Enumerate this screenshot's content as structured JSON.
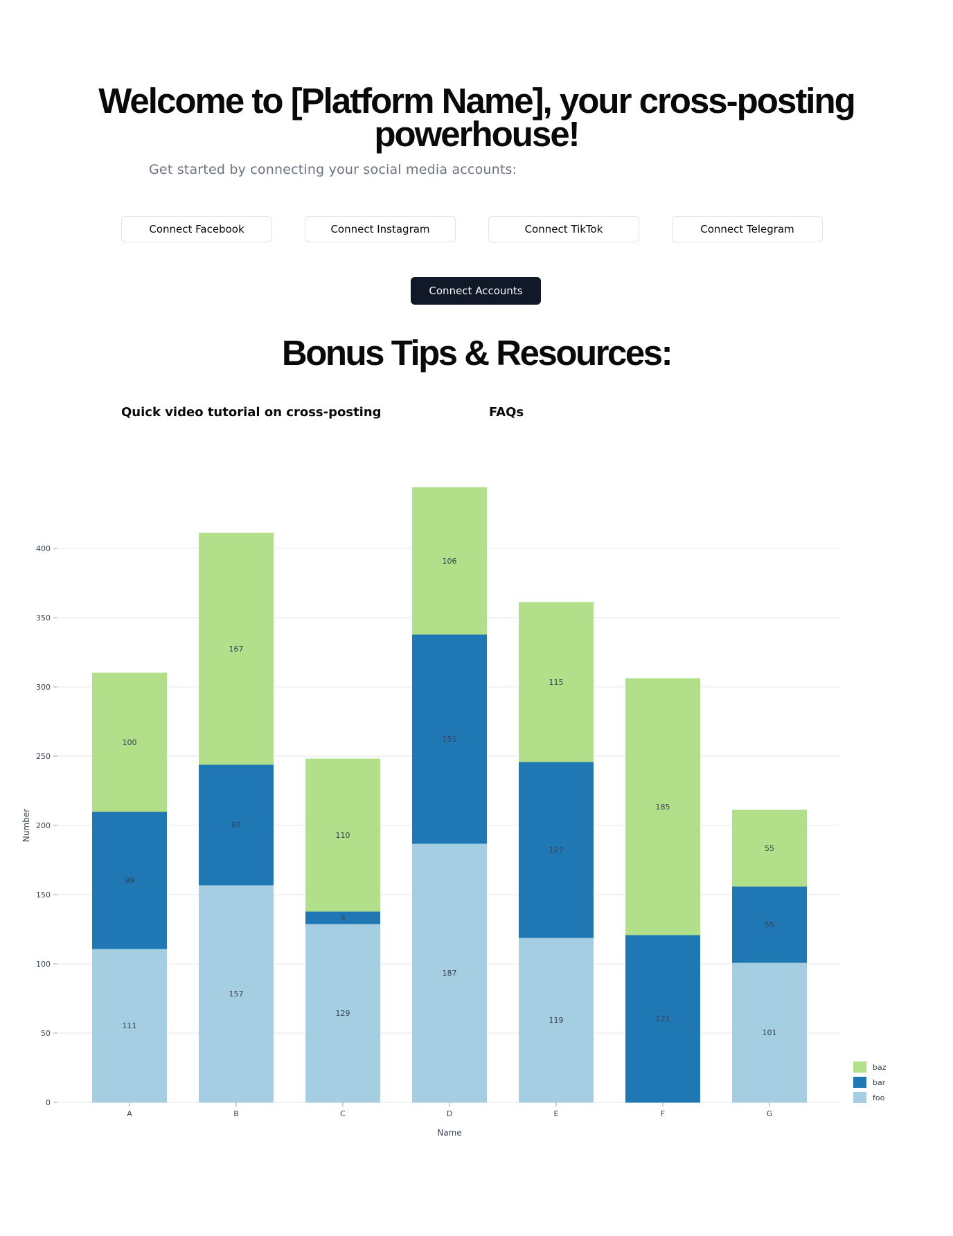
{
  "hero": {
    "title": "Welcome to [Platform Name], your cross-posting powerhouse!",
    "subtitle": "Get started by connecting your social media accounts:"
  },
  "connect": {
    "facebook": "Connect Facebook",
    "instagram": "Connect Instagram",
    "tiktok": "Connect TikTok",
    "telegram": "Connect Telegram",
    "primary": "Connect Accounts"
  },
  "resources": {
    "title": "Bonus Tips & Resources:",
    "video": "Quick video tutorial on cross-posting",
    "faqs": "FAQs"
  },
  "chart_data": {
    "type": "bar",
    "stacked": true,
    "categories": [
      "A",
      "B",
      "C",
      "D",
      "E",
      "F",
      "G"
    ],
    "series": [
      {
        "name": "foo",
        "color": "#a6cee3",
        "values": [
          111,
          157,
          129,
          187,
          119,
          0,
          101
        ]
      },
      {
        "name": "bar",
        "color": "#1f78b4",
        "values": [
          99,
          87,
          9,
          151,
          127,
          121,
          55
        ]
      },
      {
        "name": "baz",
        "color": "#b2df8a",
        "values": [
          100,
          167,
          110,
          106,
          115,
          185,
          55
        ]
      }
    ],
    "xlabel": "Name",
    "ylabel": "Number",
    "yticks": [
      0,
      50,
      100,
      150,
      200,
      250,
      300,
      350,
      400
    ],
    "ylim": [
      0,
      450
    ],
    "grid": true,
    "legend": "bottom-right"
  }
}
